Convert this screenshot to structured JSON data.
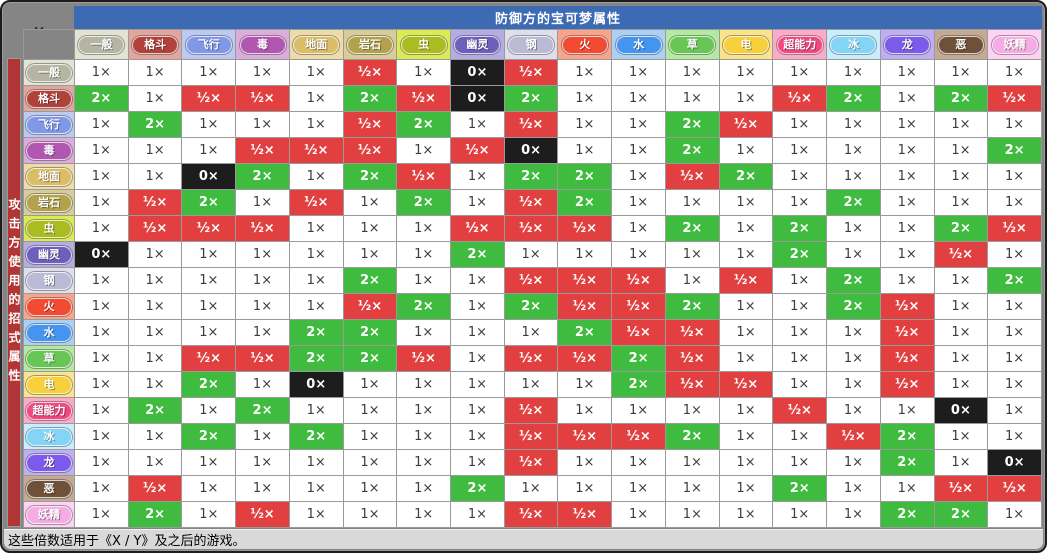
{
  "window": {
    "close_label": "×",
    "title": "防御方的宝可梦属性",
    "side_label": "攻击方使用的招式属性",
    "footer_note": "这些倍数适用于《X / Y》及之后的游戏。"
  },
  "colors": {
    "titlebar": "#3d6bb3",
    "side_strip": "#b23535",
    "multiplier_1x_bg": "#ffffff",
    "multiplier_2x_bg": "#3fbc3f",
    "multiplier_half_bg": "#e24040",
    "multiplier_0x_bg": "#1d1d1d",
    "grid_line": "#9a9a9a",
    "window_chrome": "#858585"
  },
  "value_labels": {
    "1": "1×",
    "2": "2×",
    "0.5": "½×",
    "0": "0×"
  },
  "types": [
    {
      "key": "normal",
      "label": "一般",
      "badge": "#b5b5a3",
      "cell_bg": "#e3e3d3"
    },
    {
      "key": "fighting",
      "label": "格斗",
      "badge": "#b1423a",
      "cell_bg": "#e3a69e"
    },
    {
      "key": "flying",
      "label": "飞行",
      "badge": "#8098e8",
      "cell_bg": "#bcc9f3"
    },
    {
      "key": "poison",
      "label": "毒",
      "badge": "#b156b1",
      "cell_bg": "#dcacdc"
    },
    {
      "key": "ground",
      "label": "地面",
      "badge": "#dcbc64",
      "cell_bg": "#eedca8"
    },
    {
      "key": "rock",
      "label": "岩石",
      "badge": "#b2a24c",
      "cell_bg": "#d8cd9a"
    },
    {
      "key": "bug",
      "label": "虫",
      "badge": "#abbc20",
      "cell_bg": "#dcea55"
    },
    {
      "key": "ghost",
      "label": "幽灵",
      "badge": "#6c60bc",
      "cell_bg": "#b5ace4"
    },
    {
      "key": "steel",
      "label": "钢",
      "badge": "#babad4",
      "cell_bg": "#dedeec"
    },
    {
      "key": "fire",
      "label": "火",
      "badge": "#f34a32",
      "cell_bg": "#f9a38b"
    },
    {
      "key": "water",
      "label": "水",
      "badge": "#4494f0",
      "cell_bg": "#abd0f6"
    },
    {
      "key": "grass",
      "label": "草",
      "badge": "#68c656",
      "cell_bg": "#b4e9a1"
    },
    {
      "key": "electric",
      "label": "电",
      "badge": "#f8d03b",
      "cell_bg": "#fbe38d"
    },
    {
      "key": "psychic",
      "label": "超能力",
      "badge": "#f2477f",
      "cell_bg": "#fbabc8"
    },
    {
      "key": "ice",
      "label": "冰",
      "badge": "#84d4f8",
      "cell_bg": "#c8edfd"
    },
    {
      "key": "dragon",
      "label": "龙",
      "badge": "#7b5aec",
      "cell_bg": "#bfaef4"
    },
    {
      "key": "dark",
      "label": "恶",
      "badge": "#6f5038",
      "cell_bg": "#c4aa92"
    },
    {
      "key": "fairy",
      "label": "妖精",
      "badge": "#f6abe4",
      "cell_bg": "#fcd3f4"
    }
  ],
  "chart_data": {
    "type": "heatmap",
    "title": "防御方的宝可梦属性",
    "row_axis_label": "攻击方使用的招式属性",
    "legend": "values are damage multipliers: 1, 2, 0.5, 0",
    "columns": [
      "一般",
      "格斗",
      "飞行",
      "毒",
      "地面",
      "岩石",
      "虫",
      "幽灵",
      "钢",
      "火",
      "水",
      "草",
      "电",
      "超能力",
      "冰",
      "龙",
      "恶",
      "妖精"
    ],
    "rows": [
      "一般",
      "格斗",
      "飞行",
      "毒",
      "地面",
      "岩石",
      "虫",
      "幽灵",
      "钢",
      "火",
      "水",
      "草",
      "电",
      "超能力",
      "冰",
      "龙",
      "恶",
      "妖精"
    ],
    "matrix": [
      [
        1,
        1,
        1,
        1,
        1,
        0.5,
        1,
        0,
        0.5,
        1,
        1,
        1,
        1,
        1,
        1,
        1,
        1,
        1
      ],
      [
        2,
        1,
        0.5,
        0.5,
        1,
        2,
        0.5,
        0,
        2,
        1,
        1,
        1,
        1,
        0.5,
        2,
        1,
        2,
        0.5
      ],
      [
        1,
        2,
        1,
        1,
        1,
        0.5,
        2,
        1,
        0.5,
        1,
        1,
        2,
        0.5,
        1,
        1,
        1,
        1,
        1
      ],
      [
        1,
        1,
        1,
        0.5,
        0.5,
        0.5,
        1,
        0.5,
        0,
        1,
        1,
        2,
        1,
        1,
        1,
        1,
        1,
        2
      ],
      [
        1,
        1,
        0,
        2,
        1,
        2,
        0.5,
        1,
        2,
        2,
        1,
        0.5,
        2,
        1,
        1,
        1,
        1,
        1
      ],
      [
        1,
        0.5,
        2,
        1,
        0.5,
        1,
        2,
        1,
        0.5,
        2,
        1,
        1,
        1,
        1,
        2,
        1,
        1,
        1
      ],
      [
        1,
        0.5,
        0.5,
        0.5,
        1,
        1,
        1,
        0.5,
        0.5,
        0.5,
        1,
        2,
        1,
        2,
        1,
        1,
        2,
        0.5
      ],
      [
        0,
        1,
        1,
        1,
        1,
        1,
        1,
        2,
        1,
        1,
        1,
        1,
        1,
        2,
        1,
        1,
        0.5,
        1
      ],
      [
        1,
        1,
        1,
        1,
        1,
        2,
        1,
        1,
        0.5,
        0.5,
        0.5,
        1,
        0.5,
        1,
        2,
        1,
        1,
        2
      ],
      [
        1,
        1,
        1,
        1,
        1,
        0.5,
        2,
        1,
        2,
        0.5,
        0.5,
        2,
        1,
        1,
        2,
        0.5,
        1,
        1
      ],
      [
        1,
        1,
        1,
        1,
        2,
        2,
        1,
        1,
        1,
        2,
        0.5,
        0.5,
        1,
        1,
        1,
        0.5,
        1,
        1
      ],
      [
        1,
        1,
        0.5,
        0.5,
        2,
        2,
        0.5,
        1,
        0.5,
        0.5,
        2,
        0.5,
        1,
        1,
        1,
        0.5,
        1,
        1
      ],
      [
        1,
        1,
        2,
        1,
        0,
        1,
        1,
        1,
        1,
        1,
        2,
        0.5,
        0.5,
        1,
        1,
        0.5,
        1,
        1
      ],
      [
        1,
        2,
        1,
        2,
        1,
        1,
        1,
        1,
        0.5,
        1,
        1,
        1,
        1,
        0.5,
        1,
        1,
        0,
        1
      ],
      [
        1,
        1,
        2,
        1,
        2,
        1,
        1,
        1,
        0.5,
        0.5,
        0.5,
        2,
        1,
        1,
        0.5,
        2,
        1,
        1
      ],
      [
        1,
        1,
        1,
        1,
        1,
        1,
        1,
        1,
        0.5,
        1,
        1,
        1,
        1,
        1,
        1,
        2,
        1,
        0
      ],
      [
        1,
        0.5,
        1,
        1,
        1,
        1,
        1,
        2,
        1,
        1,
        1,
        1,
        1,
        2,
        1,
        1,
        0.5,
        0.5
      ],
      [
        1,
        2,
        1,
        0.5,
        1,
        1,
        1,
        1,
        0.5,
        0.5,
        1,
        1,
        1,
        1,
        1,
        2,
        2,
        1
      ]
    ]
  }
}
